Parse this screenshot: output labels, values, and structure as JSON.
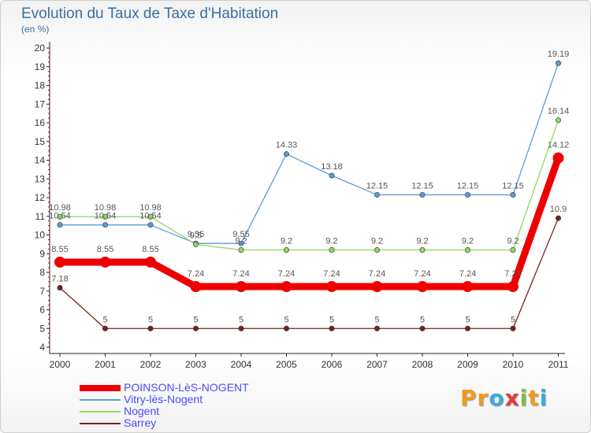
{
  "title": "Evolution du Taux de Taxe d'Habitation",
  "unit": "(en %)",
  "logo": {
    "text": "Proxiti",
    "letters": [
      "P",
      "r",
      "o",
      "x",
      "i",
      "t",
      "i"
    ],
    "colors": [
      "#f29a1d",
      "#f29a1d",
      "#3da9e0",
      "#e13a3a",
      "#7fbf3f",
      "#f29a1d",
      "#3da9e0"
    ]
  },
  "chart_data": {
    "type": "line",
    "x": [
      "2000",
      "2001",
      "2002",
      "2003",
      "2004",
      "2005",
      "2006",
      "2007",
      "2008",
      "2009",
      "2010",
      "2011"
    ],
    "ylim": [
      4,
      20
    ],
    "yticks": [
      "4",
      "5",
      "6",
      "7",
      "8",
      "9",
      "10",
      "11",
      "12",
      "13",
      "14",
      "15",
      "16",
      "17",
      "18",
      "19",
      "20"
    ],
    "grid": false,
    "legend_position": "bottom-left",
    "series": [
      {
        "name": "POINSON-LèS-NOGENT",
        "color": "#ee0000",
        "emphasis": true,
        "values": [
          8.55,
          8.55,
          8.55,
          7.24,
          7.24,
          7.24,
          7.24,
          7.24,
          7.24,
          7.24,
          7.24,
          14.12
        ],
        "labels": [
          "8.55",
          "8.55",
          "8.55",
          "7.24",
          "7.24",
          "7.24",
          "7.24",
          "7.24",
          "7.24",
          "7.24",
          "7.24",
          "14.12"
        ]
      },
      {
        "name": "Vitry-lès-Nogent",
        "color": "#5b9bd5",
        "values": [
          10.54,
          10.54,
          10.54,
          9.55,
          9.55,
          14.33,
          13.18,
          12.15,
          12.15,
          12.15,
          12.15,
          19.19
        ],
        "labels": [
          "10.54",
          "10.54",
          "10.54",
          "9.55",
          "9.55",
          "14.33",
          "13.18",
          "12.15",
          "12.15",
          "12.15",
          "12.15",
          "19.19"
        ]
      },
      {
        "name": "Nogent",
        "color": "#8fd860",
        "values": [
          10.98,
          10.98,
          10.98,
          9.5,
          9.2,
          9.2,
          9.2,
          9.2,
          9.2,
          9.2,
          9.2,
          16.14
        ],
        "labels": [
          "10.98",
          "10.98",
          "10.98",
          "9.5",
          "9.2",
          "9.2",
          "9.2",
          "9.2",
          "9.2",
          "9.2",
          "9.2",
          "16.14"
        ]
      },
      {
        "name": "Sarrey",
        "color": "#7a2020",
        "values": [
          7.18,
          5,
          5,
          5,
          5,
          5,
          5,
          5,
          5,
          5,
          5,
          10.9
        ],
        "labels": [
          "7.18",
          "5",
          "5",
          "5",
          "5",
          "5",
          "5",
          "5",
          "5",
          "5",
          "5",
          "10.9"
        ]
      }
    ]
  }
}
